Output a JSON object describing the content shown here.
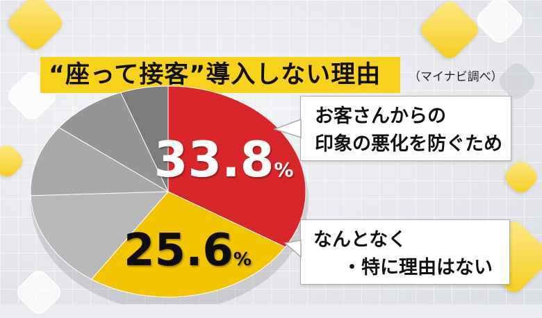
{
  "header": {
    "title": "“座って接客”導入しない理由",
    "source": "（マイナビ調べ）"
  },
  "colors": {
    "accent_red": "#d9262a",
    "accent_yellow": "#f2c500",
    "title_bg": "#f6d21a"
  },
  "chart_data": {
    "type": "pie",
    "title": "“座って接客”導入しない理由",
    "slices": [
      {
        "label": "お客さんからの印象の悪化を防ぐため",
        "value": 33.8,
        "display": "33.8",
        "color": "#d9262a",
        "highlight": true
      },
      {
        "label": "なんとなく・特に理由はない",
        "value": 25.6,
        "display": "25.6",
        "color": "#f2c500",
        "highlight": true
      },
      {
        "label": "",
        "value": 15.0,
        "color": "#b9b9b9"
      },
      {
        "label": "",
        "value": 11.0,
        "color": "#a9a9a9"
      },
      {
        "label": "",
        "value": 9.0,
        "color": "#959595"
      },
      {
        "label": "",
        "value": 5.6,
        "color": "#7d7d7d"
      }
    ],
    "unit": "%"
  },
  "callouts": {
    "red_line1": "お客さんからの",
    "red_line2": "印象の悪化を防ぐため",
    "yellow_line1": "なんとなく",
    "yellow_line2": "・特に理由はない"
  }
}
